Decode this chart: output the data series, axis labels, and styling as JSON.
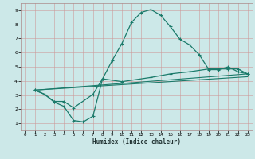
{
  "title": "",
  "xlabel": "Humidex (Indice chaleur)",
  "bg_color": "#cce8e8",
  "line_color": "#1a7a6a",
  "grid_color": "#aacccc",
  "grid_color2": "#cc9999",
  "xlim": [
    -0.5,
    23.5
  ],
  "ylim": [
    0.5,
    9.5
  ],
  "xticks": [
    0,
    1,
    2,
    3,
    4,
    5,
    6,
    7,
    8,
    9,
    10,
    11,
    12,
    13,
    14,
    15,
    16,
    17,
    18,
    19,
    20,
    21,
    22,
    23
  ],
  "yticks": [
    1,
    2,
    3,
    4,
    5,
    6,
    7,
    8,
    9
  ],
  "curve1_x": [
    1,
    2,
    3,
    4,
    5,
    6,
    7,
    8,
    9,
    10,
    11,
    12,
    13,
    14,
    15,
    16,
    17,
    18,
    19,
    20,
    21,
    22,
    23
  ],
  "curve1_y": [
    3.35,
    3.05,
    2.5,
    2.2,
    1.2,
    1.1,
    1.5,
    4.15,
    5.45,
    6.65,
    8.15,
    8.85,
    9.05,
    8.65,
    7.85,
    6.95,
    6.55,
    5.85,
    4.8,
    4.8,
    5.0,
    4.65,
    4.5
  ],
  "curve2_x": [
    1,
    2,
    3,
    4,
    5,
    7,
    8,
    10,
    13,
    15,
    17,
    19,
    20,
    21,
    22,
    23
  ],
  "curve2_y": [
    3.35,
    3.05,
    2.55,
    2.55,
    2.1,
    3.05,
    4.15,
    3.95,
    4.25,
    4.5,
    4.65,
    4.85,
    4.85,
    4.85,
    4.85,
    4.5
  ],
  "curve3_x": [
    1,
    23
  ],
  "curve3_y": [
    3.35,
    4.5
  ],
  "curve4_x": [
    1,
    23
  ],
  "curve4_y": [
    3.35,
    4.3
  ]
}
